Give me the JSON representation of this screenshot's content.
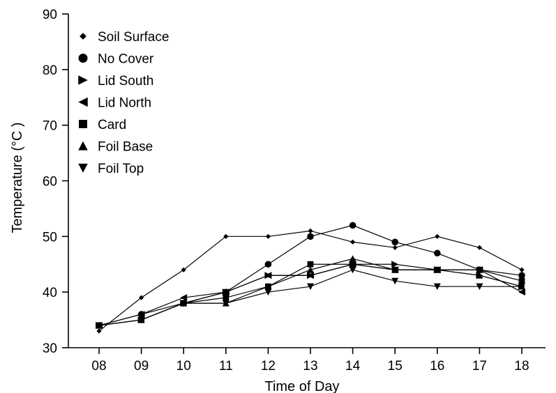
{
  "chart_data": {
    "type": "line",
    "xlabel": "Time of Day",
    "ylabel": "Temperature (°C )",
    "x": [
      "08",
      "09",
      "10",
      "11",
      "12",
      "13",
      "14",
      "15",
      "16",
      "17",
      "18"
    ],
    "ylim": [
      30,
      90
    ],
    "yticks": [
      30,
      40,
      50,
      60,
      70,
      80,
      90
    ],
    "grid": false,
    "legend_position": "top-left",
    "series": [
      {
        "name": "Soil Surface",
        "marker": "diamond",
        "values": [
          33,
          39,
          44,
          50,
          50,
          51,
          49,
          48,
          50,
          48,
          44
        ]
      },
      {
        "name": "No Cover",
        "marker": "circle",
        "values": [
          34,
          36,
          38,
          40,
          45,
          50,
          52,
          49,
          47,
          44,
          43
        ]
      },
      {
        "name": "Lid South",
        "marker": "triangle-right",
        "values": [
          34,
          35,
          38,
          40,
          43,
          43,
          45,
          45,
          44,
          43,
          41
        ]
      },
      {
        "name": "Lid North",
        "marker": "triangle-left",
        "values": [
          34,
          36,
          39,
          40,
          43,
          43,
          45,
          44,
          44,
          44,
          40
        ]
      },
      {
        "name": "Card",
        "marker": "square",
        "values": [
          34,
          35,
          38,
          39,
          41,
          45,
          45,
          44,
          44,
          44,
          42
        ]
      },
      {
        "name": "Foil Base",
        "marker": "triangle-up",
        "values": [
          34,
          35,
          38,
          38,
          41,
          44,
          46,
          44,
          44,
          43,
          41
        ]
      },
      {
        "name": "Foil Top",
        "marker": "triangle-down",
        "values": [
          34,
          35,
          38,
          38,
          40,
          41,
          44,
          42,
          41,
          41,
          41
        ]
      }
    ]
  }
}
